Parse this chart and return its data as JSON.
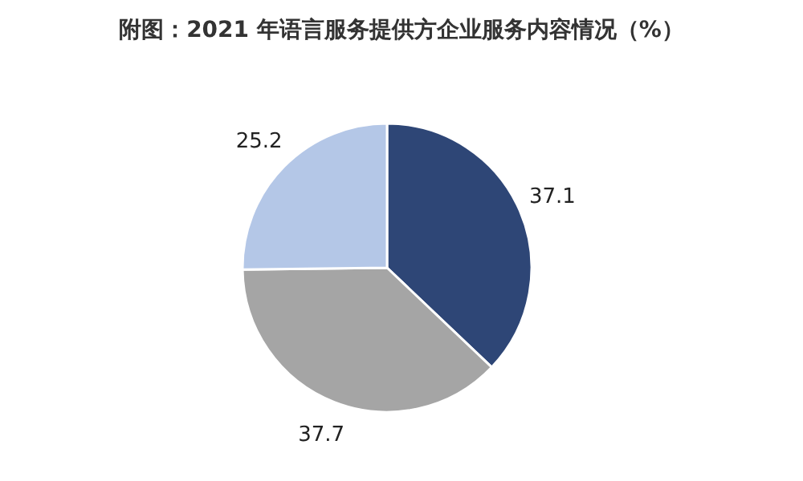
{
  "chart_data": {
    "type": "pie",
    "title": "附图：2021 年语言服务提供方企业服务内容情况（%）",
    "categories": [
      null,
      null,
      null
    ],
    "values": [
      37.1,
      37.7,
      25.2
    ],
    "colors": [
      "#2e4676",
      "#a5a5a5",
      "#b4c7e7"
    ],
    "data_labels": true,
    "legend": false
  }
}
